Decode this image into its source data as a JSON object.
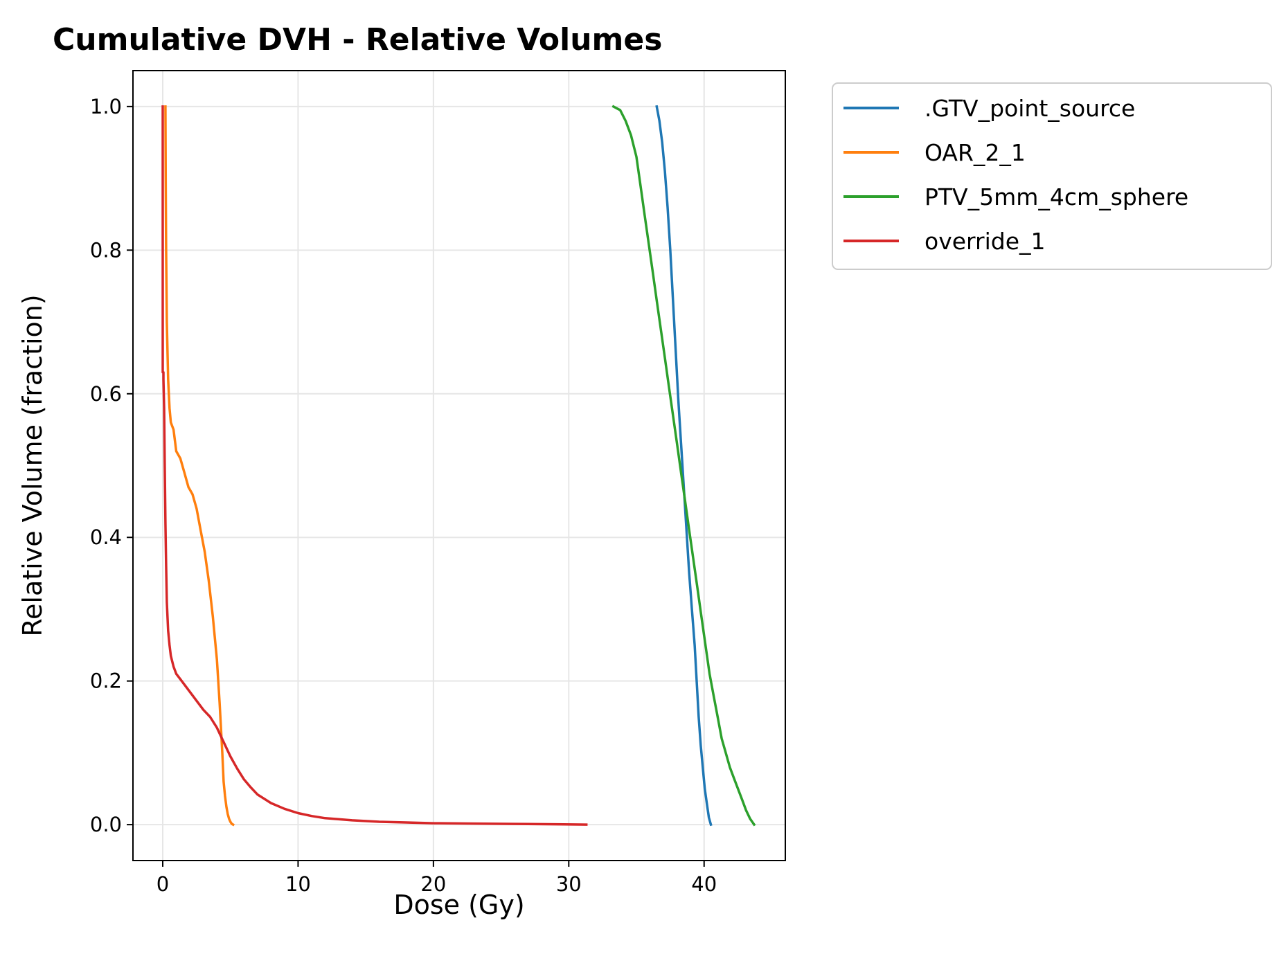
{
  "chart_data": {
    "type": "line",
    "title": "Cumulative DVH - Relative Volumes",
    "xlabel": "Dose (Gy)",
    "ylabel": "Relative Volume (fraction)",
    "xlim": [
      -2.2,
      46
    ],
    "ylim": [
      -0.05,
      1.05
    ],
    "xticks": [
      0,
      10,
      20,
      30,
      40
    ],
    "xtick_labels": [
      "0",
      "10",
      "20",
      "30",
      "40"
    ],
    "yticks": [
      0.0,
      0.2,
      0.4,
      0.6,
      0.8,
      1.0
    ],
    "ytick_labels": [
      "0.0",
      "0.2",
      "0.4",
      "0.6",
      "0.8",
      "1.0"
    ],
    "grid": true,
    "legend_position": "outside-upper-right",
    "series": [
      {
        "name": ".GTV_point_source",
        "color": "#1f77b4",
        "x": [
          36.5,
          36.7,
          36.9,
          37.1,
          37.3,
          37.5,
          37.7,
          37.9,
          38.1,
          38.3,
          38.5,
          38.7,
          38.9,
          39.1,
          39.3,
          39.45,
          39.6,
          39.75,
          39.9,
          40.05,
          40.2,
          40.35,
          40.5
        ],
        "y": [
          1.0,
          0.98,
          0.95,
          0.91,
          0.86,
          0.8,
          0.73,
          0.66,
          0.59,
          0.53,
          0.47,
          0.41,
          0.35,
          0.3,
          0.25,
          0.2,
          0.15,
          0.11,
          0.08,
          0.05,
          0.03,
          0.01,
          0.0
        ]
      },
      {
        "name": "OAR_2_1",
        "color": "#ff7f0e",
        "x": [
          0.2,
          0.22,
          0.25,
          0.3,
          0.4,
          0.5,
          0.6,
          0.8,
          1.0,
          1.3,
          1.6,
          1.9,
          2.2,
          2.5,
          2.8,
          3.1,
          3.4,
          3.7,
          4.0,
          4.2,
          4.4,
          4.5,
          4.6,
          4.7,
          4.8,
          4.9,
          5.0,
          5.1,
          5.2
        ],
        "y": [
          1.0,
          0.9,
          0.8,
          0.7,
          0.62,
          0.58,
          0.56,
          0.55,
          0.52,
          0.51,
          0.49,
          0.47,
          0.46,
          0.44,
          0.41,
          0.38,
          0.34,
          0.29,
          0.23,
          0.17,
          0.1,
          0.06,
          0.04,
          0.025,
          0.015,
          0.008,
          0.004,
          0.001,
          0.0
        ]
      },
      {
        "name": "PTV_5mm_4cm_sphere",
        "color": "#2ca02c",
        "x": [
          33.3,
          33.8,
          34.2,
          34.6,
          35.0,
          35.3,
          35.6,
          35.9,
          36.2,
          36.5,
          36.8,
          37.1,
          37.4,
          37.7,
          38.0,
          38.3,
          38.6,
          38.9,
          39.2,
          39.5,
          39.8,
          40.1,
          40.4,
          40.7,
          41.0,
          41.3,
          41.6,
          41.9,
          42.2,
          42.5,
          42.8,
          43.1,
          43.4,
          43.7
        ],
        "y": [
          1.0,
          0.995,
          0.98,
          0.96,
          0.93,
          0.89,
          0.85,
          0.81,
          0.77,
          0.73,
          0.69,
          0.65,
          0.61,
          0.57,
          0.53,
          0.49,
          0.45,
          0.41,
          0.37,
          0.33,
          0.29,
          0.25,
          0.21,
          0.18,
          0.15,
          0.12,
          0.1,
          0.08,
          0.065,
          0.05,
          0.035,
          0.02,
          0.008,
          0.0
        ]
      },
      {
        "name": "override_1",
        "color": "#d62728",
        "x": [
          0.0,
          0.0,
          0.05,
          0.05,
          0.1,
          0.15,
          0.2,
          0.25,
          0.3,
          0.4,
          0.5,
          0.6,
          0.8,
          1.0,
          1.4,
          1.8,
          2.2,
          2.6,
          3.0,
          3.5,
          4.0,
          4.5,
          5.0,
          5.5,
          6.0,
          6.5,
          7.0,
          8.0,
          9.0,
          10.0,
          11.0,
          12.0,
          14.0,
          16.0,
          18.0,
          20.0,
          23.0,
          26.0,
          29.0,
          31.3
        ],
        "y": [
          1.0,
          0.63,
          0.63,
          0.62,
          0.58,
          0.5,
          0.42,
          0.36,
          0.31,
          0.27,
          0.25,
          0.235,
          0.22,
          0.21,
          0.2,
          0.19,
          0.18,
          0.17,
          0.16,
          0.15,
          0.135,
          0.115,
          0.095,
          0.078,
          0.063,
          0.052,
          0.042,
          0.03,
          0.022,
          0.016,
          0.012,
          0.009,
          0.006,
          0.004,
          0.003,
          0.002,
          0.0015,
          0.001,
          0.0005,
          0.0
        ]
      }
    ]
  }
}
